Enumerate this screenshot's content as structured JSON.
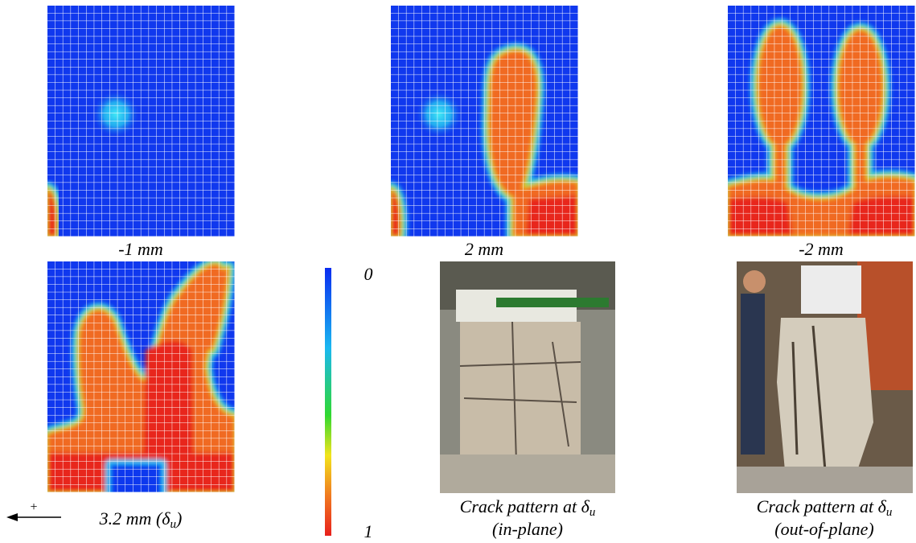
{
  "panels": [
    {
      "caption": "-1 mm"
    },
    {
      "caption": "2 mm"
    },
    {
      "caption": "-2 mm"
    },
    {
      "caption": {
        "main": "3.2 mm (δ",
        "sub": "u",
        "end": ")"
      }
    }
  ],
  "colorbar": {
    "top": "0",
    "bottom": "1"
  },
  "photos": [
    {
      "line1": {
        "main": "Crack pattern at δ",
        "sub": "u"
      },
      "line2": "(in-plane)"
    },
    {
      "line1": {
        "main": "Crack pattern at δ",
        "sub": "u"
      },
      "line2": "(out-of-plane)"
    }
  ],
  "arrow_label": "+"
}
